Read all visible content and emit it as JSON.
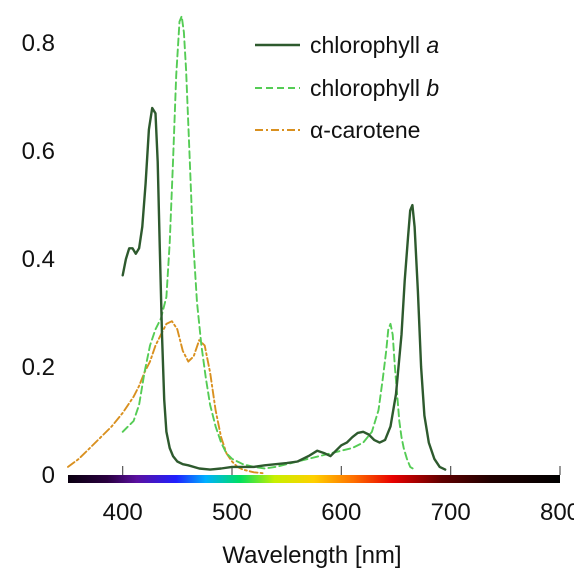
{
  "chart_data": {
    "type": "line",
    "title": "",
    "xlabel": "Wavelength [nm]",
    "ylabel": "",
    "xlim": [
      350,
      800
    ],
    "ylim": [
      0,
      0.88
    ],
    "x_ticks": [
      400,
      500,
      600,
      700,
      800
    ],
    "x_tick_labels": [
      "400",
      "500",
      "600",
      "700",
      "800"
    ],
    "y_ticks": [
      0,
      0.2,
      0.4,
      0.6,
      0.8
    ],
    "y_tick_labels": [
      "0",
      "0.2",
      "0.4",
      "0.6",
      "0.8"
    ],
    "grid": false,
    "legend_position": "top-right",
    "spectrum_bar": true,
    "series": [
      {
        "name": "chlorophyll a",
        "name_prefix": "chlorophyll ",
        "name_emph": "a",
        "color": "#2e5a2e",
        "style": "solid",
        "x": [
          400,
          403,
          406,
          409,
          412,
          415,
          418,
          421,
          424,
          427,
          430,
          432,
          434,
          436,
          438,
          440,
          443,
          446,
          450,
          455,
          460,
          470,
          480,
          490,
          500,
          510,
          520,
          530,
          540,
          550,
          560,
          570,
          578,
          585,
          590,
          595,
          600,
          605,
          610,
          615,
          620,
          625,
          630,
          635,
          640,
          645,
          650,
          655,
          658,
          661,
          663,
          665,
          667,
          670,
          673,
          676,
          680,
          685,
          690,
          695
        ],
        "y": [
          0.37,
          0.4,
          0.42,
          0.42,
          0.41,
          0.42,
          0.46,
          0.54,
          0.64,
          0.68,
          0.67,
          0.58,
          0.42,
          0.26,
          0.14,
          0.08,
          0.05,
          0.035,
          0.025,
          0.02,
          0.018,
          0.012,
          0.01,
          0.012,
          0.015,
          0.015,
          0.015,
          0.018,
          0.02,
          0.022,
          0.025,
          0.035,
          0.045,
          0.04,
          0.035,
          0.045,
          0.055,
          0.06,
          0.07,
          0.078,
          0.08,
          0.075,
          0.065,
          0.06,
          0.065,
          0.09,
          0.15,
          0.26,
          0.36,
          0.44,
          0.49,
          0.5,
          0.46,
          0.34,
          0.2,
          0.11,
          0.06,
          0.03,
          0.015,
          0.01
        ]
      },
      {
        "name": "chlorophyll b",
        "name_prefix": "chlorophyll ",
        "name_emph": "b",
        "color": "#55cc55",
        "style": "dashed",
        "x": [
          400,
          405,
          410,
          415,
          420,
          425,
          430,
          435,
          440,
          443,
          446,
          449,
          452,
          454,
          456,
          458,
          461,
          464,
          468,
          472,
          476,
          480,
          485,
          490,
          495,
          500,
          510,
          520,
          530,
          540,
          550,
          560,
          570,
          580,
          590,
          600,
          610,
          620,
          628,
          634,
          638,
          641,
          643,
          645,
          647,
          649,
          651,
          653,
          655,
          657,
          660,
          663,
          667
        ],
        "y": [
          0.08,
          0.09,
          0.1,
          0.13,
          0.19,
          0.24,
          0.27,
          0.29,
          0.33,
          0.43,
          0.58,
          0.74,
          0.84,
          0.85,
          0.82,
          0.75,
          0.6,
          0.45,
          0.32,
          0.24,
          0.18,
          0.13,
          0.09,
          0.06,
          0.04,
          0.03,
          0.02,
          0.015,
          0.012,
          0.015,
          0.02,
          0.025,
          0.03,
          0.035,
          0.04,
          0.045,
          0.05,
          0.06,
          0.08,
          0.12,
          0.18,
          0.23,
          0.27,
          0.28,
          0.26,
          0.2,
          0.15,
          0.1,
          0.07,
          0.05,
          0.03,
          0.015,
          0.01
        ]
      },
      {
        "name": "α-carotene",
        "name_prefix": "α-carotene",
        "name_emph": "",
        "color": "#d9901f",
        "style": "dashdot",
        "x": [
          350,
          360,
          370,
          380,
          390,
          400,
          410,
          415,
          420,
          425,
          430,
          435,
          440,
          445,
          450,
          455,
          460,
          465,
          470,
          475,
          480,
          485,
          490,
          495,
          500,
          505,
          510,
          520,
          530
        ],
        "y": [
          0.015,
          0.03,
          0.05,
          0.07,
          0.09,
          0.115,
          0.145,
          0.165,
          0.19,
          0.21,
          0.24,
          0.26,
          0.28,
          0.285,
          0.27,
          0.23,
          0.21,
          0.22,
          0.25,
          0.24,
          0.19,
          0.12,
          0.07,
          0.04,
          0.025,
          0.015,
          0.01,
          0.005,
          0.003
        ]
      }
    ]
  }
}
